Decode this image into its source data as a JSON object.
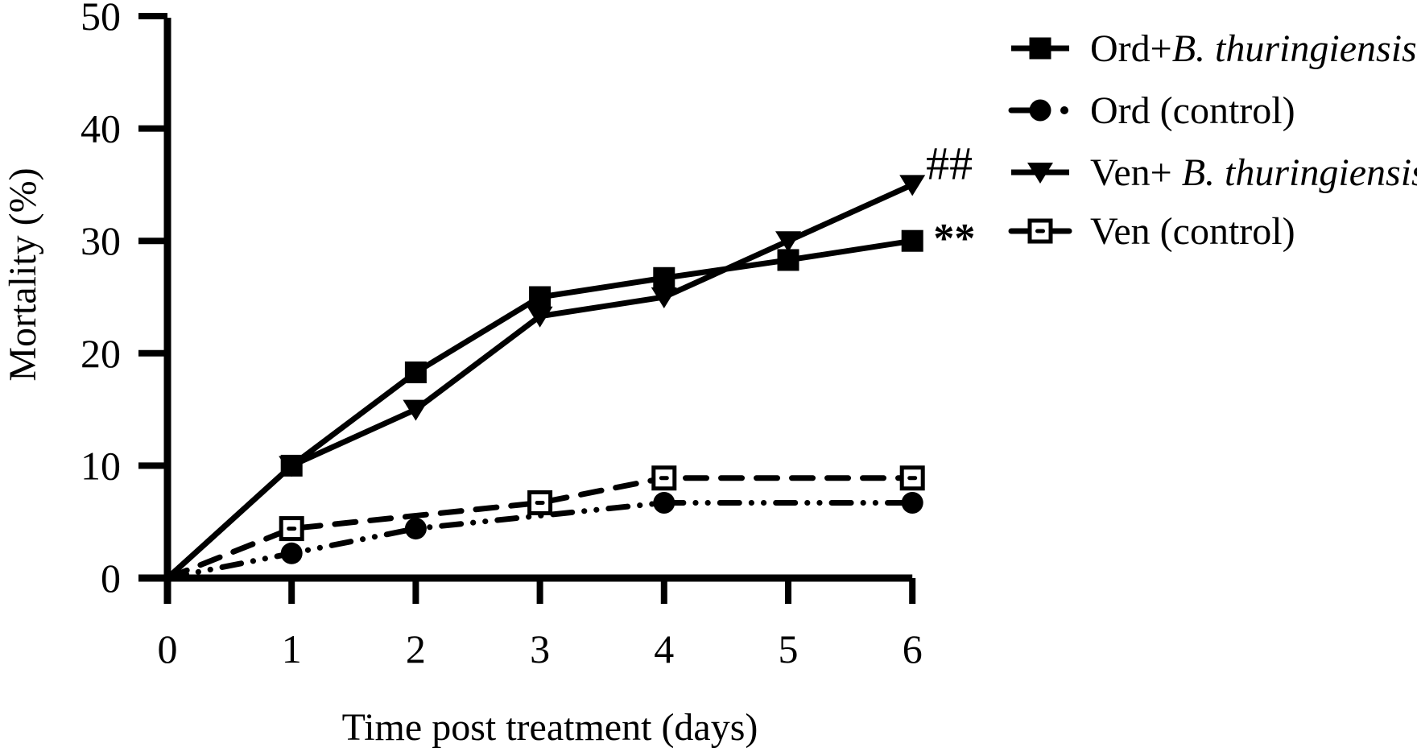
{
  "figure": {
    "background_color": "#ffffff",
    "ink_color": "#000000"
  },
  "chart_data": {
    "type": "line",
    "title": "",
    "xlabel": "Time post treatment (days)",
    "ylabel": "Mortality (%)",
    "xlim": [
      0,
      6
    ],
    "ylim": [
      0,
      50
    ],
    "x_ticks": [
      0,
      1,
      2,
      3,
      4,
      5,
      6
    ],
    "y_ticks": [
      0,
      10,
      20,
      30,
      40,
      50
    ],
    "grid": false,
    "legend_position": "top-right",
    "series": [
      {
        "id": "ord-bt",
        "name": "Ord+B. thuringiensis",
        "label_prefix": "Ord+",
        "label_italic": "B. thuringiensis",
        "marker": "filled-square",
        "line": "solid",
        "x": [
          0,
          1,
          2,
          3,
          4,
          5,
          6
        ],
        "values": [
          0,
          10,
          18.3,
          25,
          26.7,
          28.3,
          30
        ]
      },
      {
        "id": "ord-control",
        "name": "Ord (control)",
        "label_prefix": "Ord (control)",
        "label_italic": "",
        "marker": "filled-circle",
        "line": "dash-dot-dot",
        "x": [
          0,
          1,
          2,
          4,
          6
        ],
        "values": [
          0,
          2.2,
          4.4,
          6.7,
          6.7
        ]
      },
      {
        "id": "ven-bt",
        "name": "Ven+ B. thuringiensis",
        "label_prefix": "Ven+ ",
        "label_italic": "B. thuringiensis",
        "marker": "filled-triangle-down",
        "line": "solid",
        "x": [
          0,
          1,
          2,
          3,
          4,
          5,
          6
        ],
        "values": [
          0,
          10,
          15,
          23.3,
          25,
          30,
          35
        ]
      },
      {
        "id": "ven-control",
        "name": "Ven (control)",
        "label_prefix": "Ven (control)",
        "label_italic": "",
        "marker": "open-square",
        "line": "dashed",
        "x": [
          0,
          1,
          3,
          4,
          6
        ],
        "values": [
          0,
          4.4,
          6.7,
          8.9,
          8.9
        ]
      }
    ],
    "annotations": [
      {
        "text": "##",
        "attached_to": "Ven+ B. thuringiensis",
        "x": 6.11,
        "y": 35.5,
        "font_size": 58,
        "bold": false
      },
      {
        "text": "**",
        "attached_to": "Ord+B. thuringiensis",
        "x": 6.17,
        "y": 29.0,
        "font_size": 52,
        "bold": true
      }
    ]
  }
}
